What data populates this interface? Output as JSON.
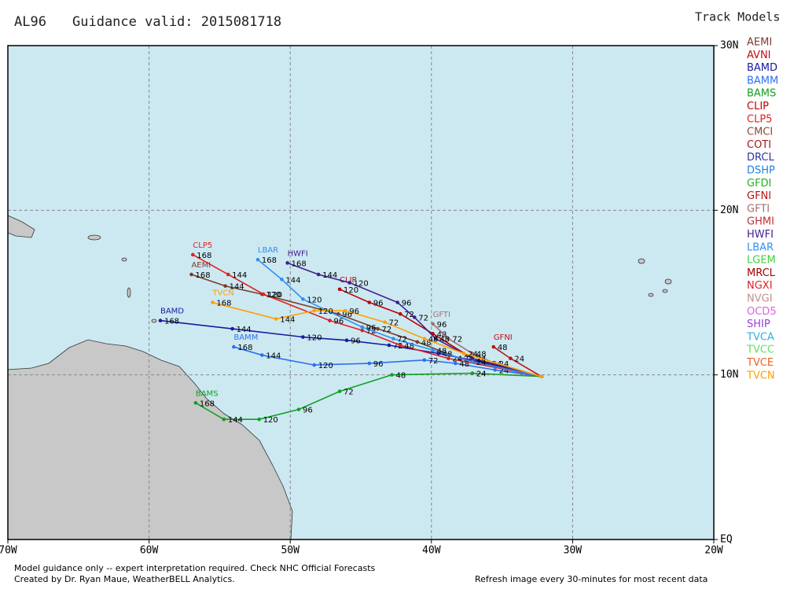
{
  "header": {
    "storm": "AL96",
    "valid": "Guidance valid: 2015081718",
    "legend_title": "Track Models"
  },
  "map": {
    "xlim": [
      -70,
      -20
    ],
    "ylim": [
      0,
      30
    ],
    "xticks": [
      {
        "value": -70,
        "label": "70W"
      },
      {
        "value": -60,
        "label": "60W"
      },
      {
        "value": -50,
        "label": "50W"
      },
      {
        "value": -40,
        "label": "40W"
      },
      {
        "value": -30,
        "label": "30W"
      },
      {
        "value": -20,
        "label": "20W"
      }
    ],
    "yticks": [
      {
        "value": 0,
        "label": "EQ"
      },
      {
        "value": 10,
        "label": "10N"
      },
      {
        "value": 20,
        "label": "20N"
      },
      {
        "value": 30,
        "label": "30N"
      }
    ],
    "grid": true
  },
  "models": [
    {
      "name": "AEMI",
      "color": "#7b3b2b",
      "track": {
        "lon": [
          -32.2,
          -38.0,
          -41.0,
          -43.8,
          -46.6,
          -52.0,
          -54.6,
          -57.0
        ],
        "lat": [
          9.9,
          11.0,
          12.0,
          12.8,
          13.7,
          14.9,
          15.4,
          16.1
        ],
        "hours": [
          null,
          24,
          48,
          72,
          96,
          120,
          144,
          168
        ]
      }
    },
    {
      "name": "AVNI",
      "color": "#c01010"
    },
    {
      "name": "BAMD",
      "color": "#1a1aa0",
      "track": {
        "lon": [
          -32.2,
          -36.0,
          -39.5,
          -43.0,
          -46.0,
          -49.1,
          -54.1,
          -59.2
        ],
        "lat": [
          9.9,
          10.7,
          11.3,
          11.8,
          12.1,
          12.3,
          12.8,
          13.3
        ],
        "hours": [
          null,
          24,
          48,
          72,
          96,
          120,
          144,
          168
        ]
      }
    },
    {
      "name": "BAMM",
      "color": "#2f6ff0",
      "track": {
        "lon": [
          -32.2,
          -35.5,
          -38.3,
          -40.5,
          -44.4,
          -48.3,
          -52.0,
          -54.0
        ],
        "lat": [
          9.9,
          10.3,
          10.7,
          10.9,
          10.7,
          10.6,
          11.2,
          11.7
        ],
        "hours": [
          null,
          24,
          48,
          72,
          96,
          120,
          144,
          168
        ]
      }
    },
    {
      "name": "BAMS",
      "color": "#10a020",
      "track": {
        "lon": [
          -32.2,
          -37.1,
          -42.8,
          -46.5,
          -49.4,
          -52.2,
          -54.7,
          -56.7
        ],
        "lat": [
          9.9,
          10.1,
          10.0,
          9.0,
          7.9,
          7.3,
          7.3,
          8.3
        ],
        "hours": [
          null,
          24,
          48,
          72,
          96,
          120,
          144,
          168
        ]
      }
    },
    {
      "name": "CLIP",
      "color": "#c00000",
      "track": {
        "lon": [
          -32.2,
          -37.1,
          -39.9,
          -42.2,
          -44.4,
          -46.5
        ],
        "lat": [
          9.9,
          11.0,
          12.5,
          13.7,
          14.4,
          15.2
        ],
        "hours": [
          null,
          24,
          48,
          72,
          96,
          120
        ]
      }
    },
    {
      "name": "CLP5",
      "color": "#e02020",
      "track": {
        "lon": [
          -32.2,
          -38.8,
          -42.2,
          -44.9,
          -47.2,
          -51.9,
          -54.4,
          -56.9
        ],
        "lat": [
          9.9,
          11.0,
          11.8,
          12.7,
          13.3,
          14.9,
          16.1,
          17.3
        ],
        "hours": [
          null,
          24,
          48,
          72,
          96,
          120,
          144,
          168
        ]
      }
    },
    {
      "name": "CMCI",
      "color": "#8b4a3a"
    },
    {
      "name": "COTI",
      "color": "#a01818"
    },
    {
      "name": "DRCL",
      "color": "#3030a0"
    },
    {
      "name": "DSHP",
      "color": "#2080e0"
    },
    {
      "name": "GFDI",
      "color": "#20b020"
    },
    {
      "name": "GFNI",
      "color": "#c01010",
      "track": {
        "lon": [
          -32.2,
          -34.4,
          -35.6
        ],
        "lat": [
          9.9,
          11.0,
          11.7
        ],
        "hours": [
          null,
          24,
          48
        ]
      }
    },
    {
      "name": "GFTI",
      "color": "#a07070",
      "track": {
        "lon": [
          -32.2,
          -35.5,
          -37.1,
          -38.8,
          -39.9
        ],
        "lat": [
          9.9,
          10.7,
          11.3,
          12.2,
          13.1
        ],
        "hours": [
          null,
          24,
          48,
          72,
          96
        ]
      }
    },
    {
      "name": "GHMI",
      "color": "#c03030"
    },
    {
      "name": "HWFI",
      "color": "#402090",
      "track": {
        "lon": [
          -32.2,
          -37.1,
          -39.7,
          -41.2,
          -42.4,
          -45.8,
          -48.0,
          -50.2
        ],
        "lat": [
          9.9,
          11.0,
          12.2,
          13.5,
          14.4,
          15.6,
          16.1,
          16.8
        ],
        "hours": [
          null,
          24,
          48,
          72,
          96,
          120,
          144,
          168
        ]
      }
    },
    {
      "name": "LBAR",
      "color": "#3090f0",
      "track": {
        "lon": [
          -32.2,
          -37.1,
          -39.9,
          -42.7,
          -44.9,
          -49.1,
          -50.6,
          -52.3
        ],
        "lat": [
          9.9,
          10.8,
          11.5,
          12.2,
          12.9,
          14.6,
          15.8,
          17.0
        ],
        "hours": [
          null,
          24,
          48,
          72,
          96,
          120,
          144,
          168
        ]
      }
    },
    {
      "name": "LGEM",
      "color": "#40d040"
    },
    {
      "name": "MRCL",
      "color": "#a00000"
    },
    {
      "name": "NGXI",
      "color": "#e02020"
    },
    {
      "name": "NVGI",
      "color": "#c09090"
    },
    {
      "name": "OCD5",
      "color": "#e060e0"
    },
    {
      "name": "SHIP",
      "color": "#9040e0"
    },
    {
      "name": "TVCA",
      "color": "#30b0e0"
    },
    {
      "name": "TVCC",
      "color": "#60e060"
    },
    {
      "name": "TVCE",
      "color": "#f06020"
    },
    {
      "name": "TVCN",
      "color": "#ffa000",
      "track": {
        "lon": [
          -32.2,
          -37.7,
          -40.5,
          -43.3,
          -46.1,
          -48.3,
          -51.0,
          -55.5
        ],
        "lat": [
          9.9,
          11.3,
          12.2,
          13.2,
          13.9,
          13.9,
          13.4,
          14.4
        ],
        "hours": [
          null,
          24,
          48,
          72,
          96,
          120,
          144,
          168
        ]
      }
    }
  ],
  "footer": {
    "line1": "Model guidance only -- expert interpretation required.  Check NHC Official Forecasts",
    "line2": "Created by Dr. Ryan Maue, WeatherBELL Analytics.",
    "refresh": "Refresh image every 30-minutes for most recent data"
  }
}
